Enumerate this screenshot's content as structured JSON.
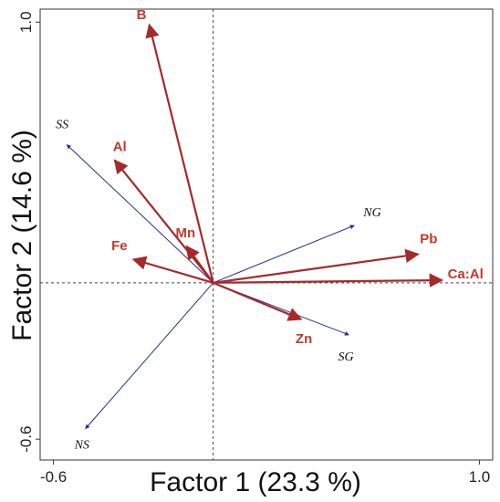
{
  "chart_data": {
    "type": "biplot",
    "xlabel": "Factor 1 (23.3 %)",
    "ylabel": "Factor 2 (14.6 %)",
    "xlim": [
      -0.65,
      1.05
    ],
    "ylim": [
      -0.68,
      1.05
    ],
    "x_ticks": [
      {
        "value": -0.6,
        "label": "-0.6"
      },
      {
        "value": 1.0,
        "label": "1.0"
      }
    ],
    "y_ticks": [
      {
        "value": 1.0,
        "label": "1.0"
      },
      {
        "value": -0.6,
        "label": "-0.6"
      }
    ],
    "reference_lines": {
      "x": 0,
      "y": 0,
      "style": "dashed"
    },
    "variables": {
      "color": "#a52a2a",
      "label_color": "#c0392b",
      "points": [
        {
          "name": "B",
          "x": -0.24,
          "y": 0.99
        },
        {
          "name": "Al",
          "x": -0.37,
          "y": 0.47
        },
        {
          "name": "Mn",
          "x": -0.1,
          "y": 0.14
        },
        {
          "name": "Fe",
          "x": -0.3,
          "y": 0.09
        },
        {
          "name": "Pb",
          "x": 0.77,
          "y": 0.11
        },
        {
          "name": "Ca:Al",
          "x": 0.86,
          "y": 0.01
        },
        {
          "name": "Zn",
          "x": 0.33,
          "y": -0.14
        }
      ]
    },
    "sites": {
      "color": "#2a2a9a",
      "points": [
        {
          "name": "SS",
          "x": -0.55,
          "y": 0.53
        },
        {
          "name": "NG",
          "x": 0.53,
          "y": 0.22
        },
        {
          "name": "SG",
          "x": 0.51,
          "y": -0.2
        },
        {
          "name": "NS",
          "x": -0.48,
          "y": -0.56
        }
      ]
    }
  }
}
